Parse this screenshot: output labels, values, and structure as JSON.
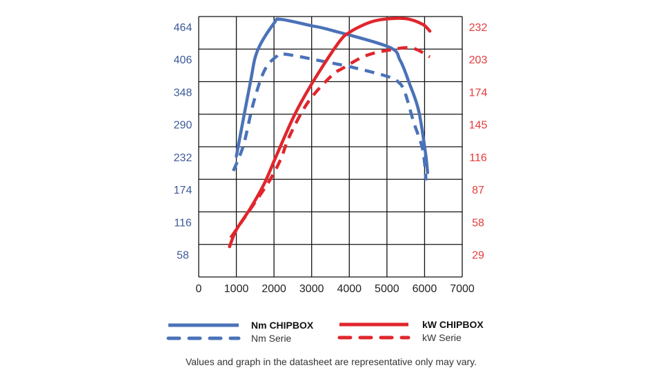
{
  "chart_data": {
    "type": "line",
    "xaxis": {
      "ticks": [
        0,
        1000,
        2000,
        3000,
        4000,
        5000,
        6000,
        7000
      ],
      "range": [
        0,
        7000
      ]
    },
    "yaxis_left": {
      "unit": "Nm",
      "ticks": [
        464,
        406,
        348,
        290,
        232,
        174,
        116,
        58
      ],
      "range": [
        0,
        464
      ]
    },
    "yaxis_right": {
      "unit": "kW",
      "ticks": [
        232,
        203,
        174,
        145,
        116,
        87,
        58,
        29
      ],
      "range": [
        0,
        232
      ]
    },
    "grid": true,
    "legend_position": "bottom",
    "series": [
      {
        "name": "Nm CHIPBOX",
        "axis": "left",
        "style": "solid",
        "color": "#4a72b8",
        "x": [
          1000,
          1370,
          1560,
          2000,
          2180,
          2970,
          3500,
          5040,
          5350,
          5590,
          5840,
          6020,
          6080
        ],
        "y": [
          215,
          346,
          403,
          452,
          459,
          448,
          440,
          410,
          386,
          346,
          297,
          223,
          186
        ]
      },
      {
        "name": "Nm Serie",
        "axis": "left",
        "style": "dashed",
        "color": "#4a72b8",
        "x": [
          920,
          1190,
          1450,
          1740,
          2050,
          2290,
          3390,
          3700,
          4120,
          4980,
          5290,
          5470,
          5710,
          5950,
          6040
        ],
        "y": [
          189,
          235,
          309,
          367,
          392,
          397,
          383,
          379,
          373,
          358,
          348,
          330,
          276,
          227,
          172
        ]
      },
      {
        "name": "kW CHIPBOX",
        "axis": "right",
        "style": "solid",
        "color": "#e0262c",
        "x": [
          820,
          1000,
          1370,
          1740,
          2050,
          2540,
          3020,
          3700,
          4010,
          4560,
          5040,
          5530,
          5950,
          6140
        ],
        "y": [
          27,
          42,
          61,
          83,
          107,
          144,
          173,
          208,
          218,
          227,
          230,
          230,
          225,
          219
        ]
      },
      {
        "name": "kW Serie",
        "axis": "right",
        "style": "dashed",
        "color": "#e0262c",
        "x": [
          850,
          1630,
          1920,
          2180,
          2420,
          2910,
          3520,
          3830,
          4430,
          5040,
          5660,
          6140
        ],
        "y": [
          35,
          73,
          88,
          105,
          126,
          156,
          179,
          186,
          197,
          202,
          204,
          196
        ]
      }
    ],
    "colors": {
      "left_axis": "#3d5a98",
      "right_axis": "#e53a3a",
      "grid": "#111111"
    }
  },
  "legend": {
    "nm_chipbox": "Nm CHIPBOX",
    "nm_serie": "Nm Serie",
    "kw_chipbox": "kW CHIPBOX",
    "kw_serie": "kW Serie"
  },
  "footnote": "Values and graph in the datasheet are representative only may vary."
}
